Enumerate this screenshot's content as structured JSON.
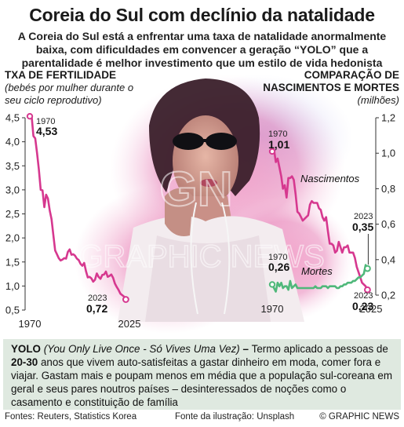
{
  "header": {
    "title": "Coreia do Sul com declínio da natalidade",
    "subtitle": "A Coreia do Sul está a enfrentar uma taxa de natalidade anormalmente baixa, com dificuldades em convencer a geração “YOLO” que a parentalidade é melhor investimento que um estilo de vida hedonista"
  },
  "left_chart": {
    "title": "TXA DE FERTILIDADE",
    "subtitle": "(bebés por mulher durante o seu ciclo reprodutivo)"
  },
  "right_chart": {
    "title_line1": "COMPARAÇÃO DE",
    "title_line2": "NASCIMENTOS E MORTES",
    "unit": "(milhões)"
  },
  "chart_data": [
    {
      "type": "line",
      "title": "TXA DE FERTILIDADE",
      "ylabel": "(bebés por mulher durante o seu ciclo reprodutivo)",
      "xlim": [
        1970,
        2025
      ],
      "ylim": [
        0.5,
        4.5
      ],
      "yticks": [
        "4,5",
        "4,0",
        "3,5",
        "3,0",
        "2,5",
        "2,0",
        "1,5",
        "1,0",
        "0,5"
      ],
      "xticks": [
        "1970",
        "2025"
      ],
      "series": [
        {
          "color": "#d6388f",
          "x": [
            1970,
            1971,
            1972,
            1973,
            1974,
            1975,
            1976,
            1977,
            1978,
            1979,
            1980,
            1981,
            1982,
            1983,
            1984,
            1985,
            1986,
            1987,
            1988,
            1989,
            1990,
            1991,
            1992,
            1993,
            1994,
            1995,
            1996,
            1997,
            1998,
            1999,
            2000,
            2001,
            2002,
            2003,
            2004,
            2005,
            2006,
            2007,
            2008,
            2009,
            2010,
            2011,
            2012,
            2013,
            2014,
            2015,
            2016,
            2017,
            2018,
            2019,
            2020,
            2021,
            2022,
            2023
          ],
          "y": [
            4.53,
            4.54,
            4.12,
            4.07,
            3.77,
            3.43,
            3.0,
            2.99,
            2.64,
            2.9,
            2.82,
            2.57,
            2.39,
            2.06,
            1.74,
            1.66,
            1.58,
            1.53,
            1.55,
            1.58,
            1.57,
            1.71,
            1.76,
            1.65,
            1.66,
            1.63,
            1.57,
            1.54,
            1.46,
            1.42,
            1.48,
            1.31,
            1.18,
            1.19,
            1.16,
            1.09,
            1.13,
            1.26,
            1.19,
            1.15,
            1.23,
            1.24,
            1.3,
            1.19,
            1.21,
            1.24,
            1.17,
            1.05,
            0.98,
            0.92,
            0.84,
            0.81,
            0.78,
            0.72
          ]
        }
      ],
      "annotations": [
        {
          "label": "1970",
          "value": "4,53"
        },
        {
          "label": "2023",
          "value": "0,72"
        }
      ]
    },
    {
      "type": "line",
      "title": "COMPARAÇÃO DE NASCIMENTOS E MORTES",
      "ylabel": "(milhões)",
      "xlim": [
        1970,
        2025
      ],
      "ylim": [
        0.2,
        1.2
      ],
      "yticks": [
        "1,2",
        "1,0",
        "0,8",
        "0,6",
        "0,4",
        "0,2"
      ],
      "xticks": [
        "1970",
        "2025"
      ],
      "series": [
        {
          "name": "Nascimentos",
          "color": "#d6388f",
          "x": [
            1970,
            1971,
            1972,
            1973,
            1974,
            1975,
            1976,
            1977,
            1978,
            1979,
            1980,
            1981,
            1982,
            1983,
            1984,
            1985,
            1986,
            1987,
            1988,
            1989,
            1990,
            1991,
            1992,
            1993,
            1994,
            1995,
            1996,
            1997,
            1998,
            1999,
            2000,
            2001,
            2002,
            2003,
            2004,
            2005,
            2006,
            2007,
            2008,
            2009,
            2010,
            2011,
            2012,
            2013,
            2014,
            2015,
            2016,
            2017,
            2018,
            2019,
            2020,
            2021,
            2022,
            2023
          ],
          "y": [
            1.01,
            1.02,
            0.95,
            0.97,
            0.92,
            0.87,
            0.8,
            0.82,
            0.75,
            0.86,
            0.86,
            0.87,
            0.85,
            0.77,
            0.67,
            0.66,
            0.64,
            0.62,
            0.63,
            0.64,
            0.65,
            0.71,
            0.73,
            0.72,
            0.72,
            0.72,
            0.69,
            0.68,
            0.64,
            0.62,
            0.64,
            0.56,
            0.49,
            0.49,
            0.48,
            0.44,
            0.45,
            0.5,
            0.47,
            0.44,
            0.47,
            0.47,
            0.48,
            0.44,
            0.44,
            0.44,
            0.41,
            0.36,
            0.33,
            0.3,
            0.27,
            0.26,
            0.25,
            0.23
          ]
        },
        {
          "name": "Mortes",
          "color": "#4fb87a",
          "x": [
            1970,
            1971,
            1972,
            1973,
            1974,
            1975,
            1976,
            1977,
            1978,
            1979,
            1980,
            1981,
            1982,
            1983,
            1984,
            1985,
            1986,
            1987,
            1988,
            1989,
            1990,
            1991,
            1992,
            1993,
            1994,
            1995,
            1996,
            1997,
            1998,
            1999,
            2000,
            2001,
            2002,
            2003,
            2004,
            2005,
            2006,
            2007,
            2008,
            2009,
            2010,
            2011,
            2012,
            2013,
            2014,
            2015,
            2016,
            2017,
            2018,
            2019,
            2020,
            2021,
            2022,
            2023
          ],
          "y": [
            0.26,
            0.24,
            0.22,
            0.27,
            0.25,
            0.27,
            0.24,
            0.25,
            0.25,
            0.23,
            0.28,
            0.24,
            0.25,
            0.26,
            0.24,
            0.24,
            0.24,
            0.24,
            0.24,
            0.24,
            0.24,
            0.24,
            0.24,
            0.24,
            0.25,
            0.24,
            0.24,
            0.24,
            0.25,
            0.25,
            0.25,
            0.24,
            0.25,
            0.25,
            0.25,
            0.25,
            0.24,
            0.24,
            0.25,
            0.25,
            0.26,
            0.26,
            0.27,
            0.27,
            0.27,
            0.28,
            0.28,
            0.29,
            0.3,
            0.3,
            0.31,
            0.32,
            0.37,
            0.35
          ]
        }
      ],
      "annotations": [
        {
          "label": "1970",
          "value": "1,01"
        },
        {
          "label": "1970",
          "value": "0,26"
        },
        {
          "label": "2023",
          "value": "0,35"
        },
        {
          "label": "2023",
          "value": "0,23"
        }
      ]
    }
  ],
  "info": {
    "term": "YOLO",
    "expansion": "(You Only Live Once - Só Vives Uma Vez)",
    "dash": " – ",
    "text1": "Termo aplicado a pessoas de ",
    "age": "20-30",
    "text2": " anos que vivem auto-satisfeitas a gastar dinheiro em moda, comer fora e viajar. Gastam mais e poupam menos em média que a população sul-coreana em geral e seus pares noutros países – desinteressados de noções como o casamento e constituição de família"
  },
  "footer": {
    "sources": "Fontes: Reuters, Statistics Korea",
    "illustration": "Fonte da ilustração: Unsplash",
    "credit": "© GRAPHIC NEWS"
  },
  "watermark": "GRAPHIC NEWS",
  "watermark_mark": "GN",
  "colors": {
    "births": "#d6388f",
    "deaths": "#4fb87a",
    "info_bg": "#dfe9e0"
  }
}
